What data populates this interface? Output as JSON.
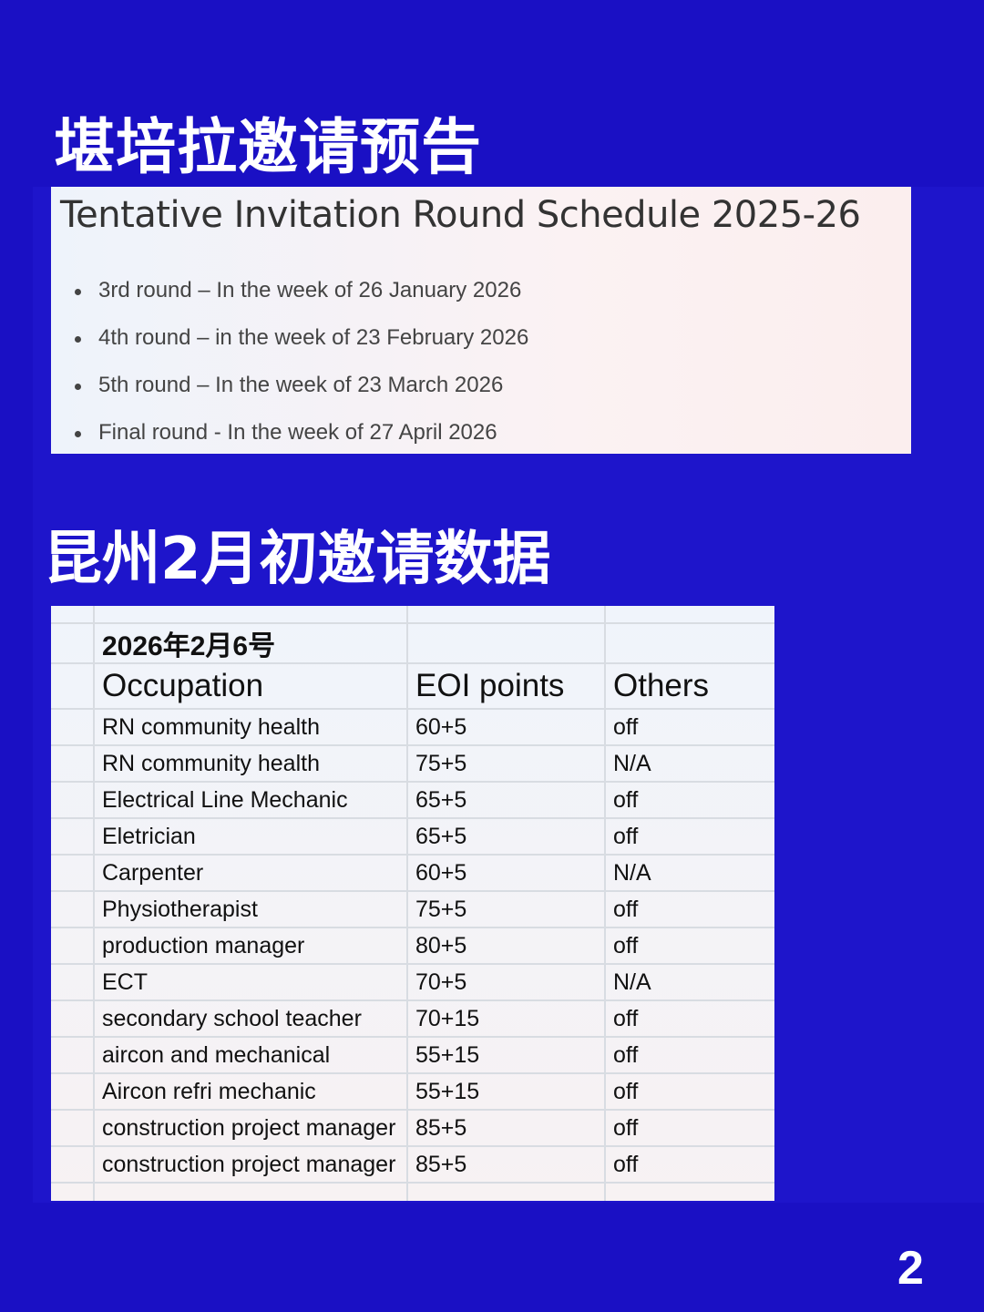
{
  "heading_schedule": "堪培拉邀请预告",
  "schedule": {
    "title": "Tentative Invitation Round Schedule 2025-26",
    "items": [
      "3rd round – In the week of 26 January 2026",
      "4th round – in the week of 23 February 2026",
      "5th round – In the week of 23 March 2026",
      "Final round - In the week of 27 April 2026"
    ]
  },
  "heading_data": "昆州2月初邀请数据",
  "table": {
    "date": "2026年2月6号",
    "headers": [
      "Occupation",
      "EOI points",
      "Others"
    ],
    "rows": [
      [
        "RN community health",
        "60+5",
        "off"
      ],
      [
        "RN community health",
        "75+5",
        "N/A"
      ],
      [
        "Electrical Line Mechanic",
        "65+5",
        "off"
      ],
      [
        "Eletrician",
        "65+5",
        "off"
      ],
      [
        "Carpenter",
        "60+5",
        "N/A"
      ],
      [
        "Physiotherapist",
        "75+5",
        "off"
      ],
      [
        "production manager",
        "80+5",
        "off"
      ],
      [
        "ECT",
        "70+5",
        "N/A"
      ],
      [
        "secondary school teacher",
        "70+15",
        "off"
      ],
      [
        "aircon and mechanical",
        "55+15",
        "off"
      ],
      [
        "Aircon refri mechanic",
        "55+15",
        "off"
      ],
      [
        "construction project manager",
        "85+5",
        "off"
      ],
      [
        "construction project manager",
        "85+5",
        "off"
      ]
    ]
  },
  "page_number": "2",
  "colors": {
    "background": "#1a10c4"
  }
}
